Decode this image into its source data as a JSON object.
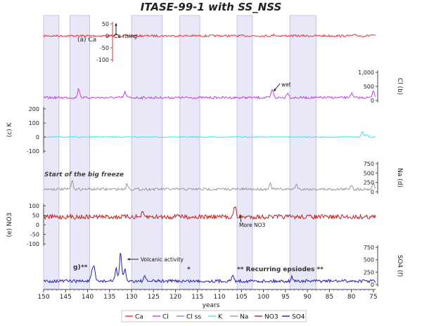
{
  "chart_data": {
    "type": "line",
    "title": "ITASE-99-1 with SS_NSS",
    "xlabel": "years",
    "xlim": [
      150,
      74.5
    ],
    "x_ticks": [
      150,
      145,
      140,
      135,
      130,
      125,
      120,
      115,
      110,
      105,
      100,
      95,
      90,
      85,
      80,
      75
    ],
    "shaded_bands": [
      [
        150,
        146.5
      ],
      [
        144,
        139.5
      ],
      [
        130,
        123
      ],
      [
        119,
        114.5
      ],
      [
        106,
        102.5
      ],
      [
        94,
        88
      ]
    ],
    "legend_position": "bottom",
    "series": [
      {
        "name": "Ca",
        "color": "#ee3333",
        "axis_label": "(a) Ca",
        "ticks": [
          50,
          0,
          -50,
          -100
        ],
        "ylim": [
          -100,
          50
        ],
        "baseline": 0,
        "spikes": [
          [
            133.5,
            6
          ],
          [
            97.5,
            5
          ],
          [
            79,
            4
          ],
          [
            75.5,
            4
          ]
        ]
      },
      {
        "name": "Cl",
        "color": "#bb44dd",
        "axis_label": "Cl (b)",
        "ticks": [
          1000,
          500,
          0
        ],
        "ylim": [
          0,
          1000
        ],
        "baseline": 100,
        "spikes": [
          [
            142,
            310
          ],
          [
            131.5,
            190
          ],
          [
            98,
            280
          ],
          [
            94.5,
            180
          ],
          [
            80,
            150
          ],
          [
            75,
            260
          ]
        ]
      },
      {
        "name": "Cl ss",
        "color": "#8888cc",
        "axis_label": "",
        "ticks": [],
        "ylim": [
          0,
          1000
        ],
        "baseline": 0,
        "spikes": []
      },
      {
        "name": "K",
        "color": "#44e0e8",
        "axis_label": "(c) K",
        "ticks": [
          200,
          100,
          0,
          -100
        ],
        "ylim": [
          -100,
          200
        ],
        "baseline": 0,
        "spikes": [
          [
            77.5,
            40
          ],
          [
            76.5,
            18
          ]
        ]
      },
      {
        "name": "Na",
        "color": "#999999",
        "axis_label": "Na (d)",
        "ticks": [
          750,
          500,
          250,
          0
        ],
        "ylim": [
          0,
          750
        ],
        "baseline": 70,
        "spikes": [
          [
            143.5,
            210
          ],
          [
            131,
            140
          ],
          [
            98.5,
            150
          ],
          [
            92.5,
            130
          ],
          [
            80,
            120
          ],
          [
            75,
            160
          ]
        ]
      },
      {
        "name": "NO3",
        "color": "#bb2222",
        "axis_label": "(e) NO3",
        "ticks": [
          100,
          50,
          0,
          -50,
          -100
        ],
        "ylim": [
          -100,
          100
        ],
        "baseline": 42,
        "spikes": [
          [
            106.5,
            55
          ],
          [
            127.5,
            20
          ],
          [
            119.5,
            18
          ]
        ]
      },
      {
        "name": "SO4",
        "color": "#2222aa",
        "axis_label": "SO4 (f)",
        "ticks": [
          750,
          500,
          250,
          0
        ],
        "ylim": [
          0,
          750
        ],
        "baseline": 70,
        "spikes": [
          [
            132.5,
            560
          ],
          [
            133.5,
            260
          ],
          [
            131.5,
            230
          ],
          [
            138.5,
            250
          ],
          [
            139,
            180
          ],
          [
            107,
            110
          ],
          [
            93.5,
            80
          ],
          [
            127,
            80
          ]
        ]
      }
    ],
    "annotations": [
      {
        "text": "Ca rising",
        "x": 133.5,
        "series": "Ca"
      },
      {
        "text": "wet",
        "x": 98,
        "series": "Cl"
      },
      {
        "text": "Start of the big freeze",
        "x": 150,
        "series": "Na"
      },
      {
        "text": "More NO3",
        "x": 105.5,
        "series": "NO3"
      },
      {
        "text": "Volcanic activity",
        "x": 132.5,
        "series": "SO4"
      },
      {
        "text": "g)",
        "x": 141,
        "series": "SO4"
      },
      {
        "text": "**",
        "x": 139.5,
        "series": "SO4"
      },
      {
        "text": "*",
        "x": 117.5,
        "series": "SO4"
      },
      {
        "text": "** Recurring epsiodes **",
        "x": 97,
        "series": "SO4"
      }
    ]
  }
}
